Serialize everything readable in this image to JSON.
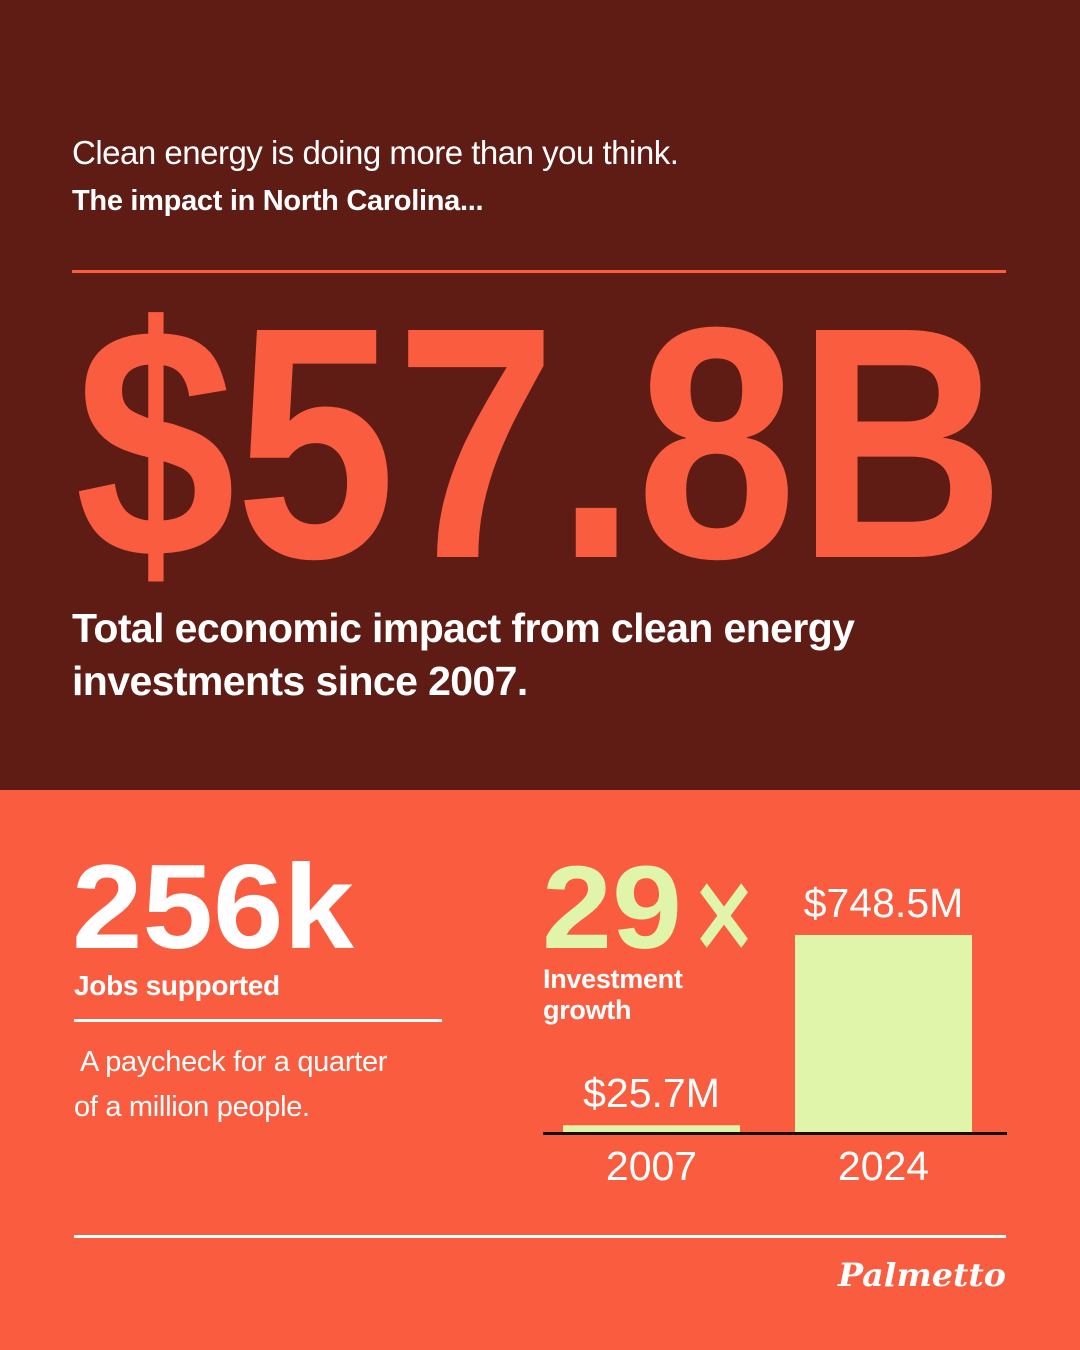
{
  "header": {
    "kicker": "Clean energy is doing more than you think.",
    "subtitle": "The impact in North Carolina..."
  },
  "hero": {
    "value": "$57.8B",
    "caption_line1": "Total economic impact from clean energy",
    "caption_line2": "investments since 2007."
  },
  "jobs": {
    "value": "256k",
    "label": "Jobs supported",
    "note_line1": "A paycheck for a quarter",
    "note_line2": "of a million people."
  },
  "growth": {
    "value_number": "29",
    "value_sign": "×",
    "label_line1": "Investment",
    "label_line2": "growth"
  },
  "chart_data": {
    "type": "bar",
    "categories": [
      "2007",
      "2024"
    ],
    "values": [
      25.7,
      748.5
    ],
    "data_labels": [
      "$25.7M",
      "$748.5M"
    ],
    "title": "",
    "xlabel": "",
    "ylabel": "",
    "ylim": [
      0,
      748.5
    ],
    "grid": false,
    "legend": "none"
  },
  "brand": {
    "logo_text": "Palmetto"
  },
  "colors": {
    "dark_background": "#5e1c14",
    "accent_orange": "#f95c3f",
    "lime": "#e0f4aa",
    "white": "#ffffff",
    "axis": "#111111"
  }
}
